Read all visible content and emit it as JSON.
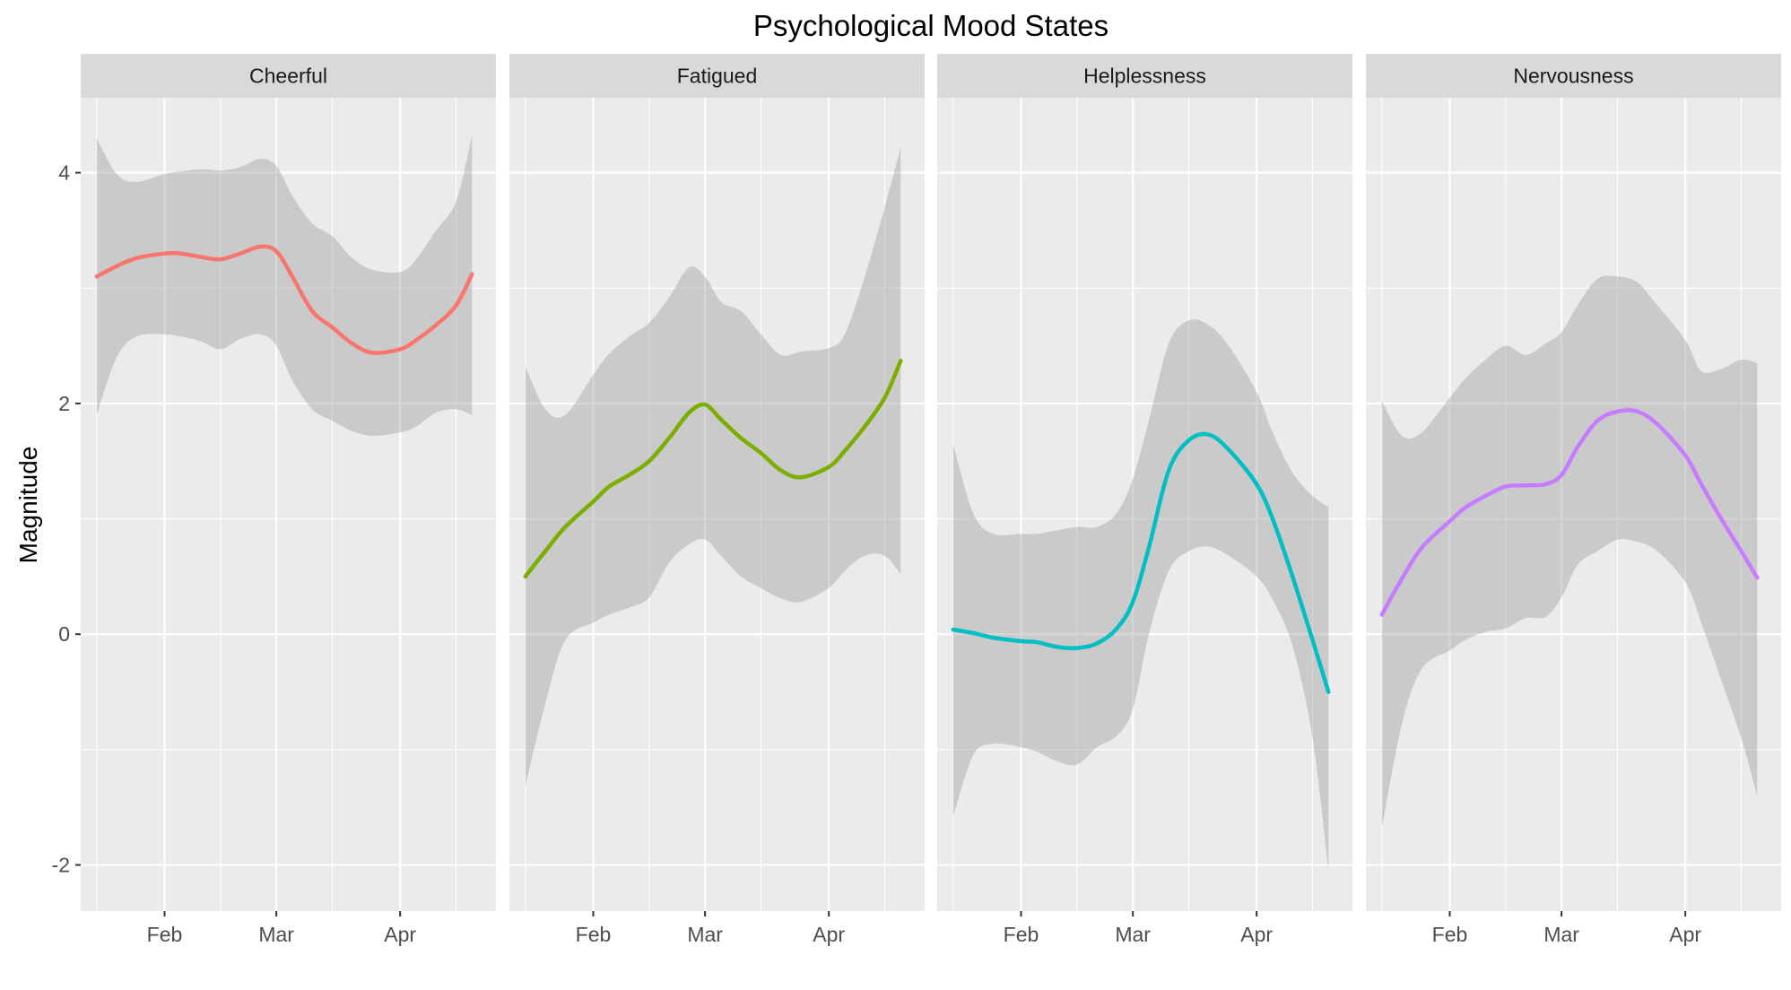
{
  "chart_data": {
    "type": "line",
    "title": "Psychological Mood States",
    "xlabel": "",
    "ylabel": "Magnitude",
    "ylim": [
      -2.4,
      4.65
    ],
    "y_ticks": [
      -2,
      0,
      2,
      4
    ],
    "y_tick_labels": [
      "-2",
      "0",
      "2",
      "4"
    ],
    "x_ticks": [
      "2023-02-01",
      "2023-03-01",
      "2023-04-01"
    ],
    "x_tick_labels": [
      "Feb",
      "Mar",
      "Apr"
    ],
    "x_minor_ticks": [
      "2023-01-15",
      "2023-02-15",
      "2023-03-15",
      "2023-04-15"
    ],
    "xlim": [
      "2023-01-11",
      "2023-04-25"
    ],
    "grid": true,
    "legend": "none",
    "band": "confidence interval (grey)",
    "panels": [
      {
        "name": "Cheerful",
        "color": "#F8766D",
        "x": [
          "2023-01-15",
          "2023-01-20",
          "2023-01-25",
          "2023-02-01",
          "2023-02-05",
          "2023-02-10",
          "2023-02-15",
          "2023-02-20",
          "2023-02-25",
          "2023-03-01",
          "2023-03-05",
          "2023-03-10",
          "2023-03-15",
          "2023-03-20",
          "2023-03-25",
          "2023-04-01",
          "2023-04-05",
          "2023-04-10",
          "2023-04-15",
          "2023-04-19"
        ],
        "y": [
          3.1,
          3.19,
          3.26,
          3.3,
          3.3,
          3.27,
          3.25,
          3.3,
          3.36,
          3.32,
          3.1,
          2.8,
          2.66,
          2.52,
          2.44,
          2.47,
          2.55,
          2.68,
          2.85,
          3.12
        ],
        "lower": [
          1.9,
          2.4,
          2.58,
          2.6,
          2.58,
          2.54,
          2.47,
          2.56,
          2.6,
          2.5,
          2.2,
          1.95,
          1.85,
          1.76,
          1.72,
          1.75,
          1.8,
          1.92,
          1.95,
          1.9
        ],
        "upper": [
          4.3,
          3.99,
          3.92,
          3.99,
          4.01,
          4.03,
          4.02,
          4.05,
          4.12,
          4.06,
          3.8,
          3.56,
          3.45,
          3.26,
          3.16,
          3.14,
          3.25,
          3.5,
          3.75,
          4.32
        ]
      },
      {
        "name": "Fatigued",
        "color": "#7CAE00",
        "x": [
          "2023-01-15",
          "2023-01-20",
          "2023-01-25",
          "2023-02-01",
          "2023-02-05",
          "2023-02-10",
          "2023-02-15",
          "2023-02-20",
          "2023-02-25",
          "2023-03-01",
          "2023-03-05",
          "2023-03-10",
          "2023-03-15",
          "2023-03-20",
          "2023-03-25",
          "2023-04-01",
          "2023-04-05",
          "2023-04-10",
          "2023-04-15",
          "2023-04-19"
        ],
        "y": [
          0.5,
          0.72,
          0.93,
          1.15,
          1.28,
          1.38,
          1.5,
          1.7,
          1.92,
          1.99,
          1.86,
          1.7,
          1.57,
          1.42,
          1.36,
          1.45,
          1.59,
          1.8,
          2.05,
          2.37
        ],
        "lower": [
          -1.32,
          -0.6,
          -0.05,
          0.1,
          0.17,
          0.23,
          0.32,
          0.62,
          0.78,
          0.82,
          0.68,
          0.5,
          0.4,
          0.31,
          0.28,
          0.4,
          0.55,
          0.68,
          0.68,
          0.52
        ],
        "upper": [
          2.32,
          1.95,
          1.9,
          2.25,
          2.43,
          2.58,
          2.7,
          2.92,
          3.18,
          3.1,
          2.88,
          2.8,
          2.6,
          2.42,
          2.45,
          2.48,
          2.6,
          3.1,
          3.7,
          4.22
        ]
      },
      {
        "name": "Helplessness",
        "color": "#00BFC4",
        "x": [
          "2023-01-15",
          "2023-01-20",
          "2023-01-25",
          "2023-02-01",
          "2023-02-05",
          "2023-02-10",
          "2023-02-15",
          "2023-02-20",
          "2023-02-25",
          "2023-03-01",
          "2023-03-05",
          "2023-03-10",
          "2023-03-15",
          "2023-03-20",
          "2023-03-25",
          "2023-04-01",
          "2023-04-05",
          "2023-04-10",
          "2023-04-15",
          "2023-04-19"
        ],
        "y": [
          0.04,
          0.01,
          -0.03,
          -0.06,
          -0.07,
          -0.11,
          -0.12,
          -0.08,
          0.05,
          0.28,
          0.75,
          1.42,
          1.68,
          1.73,
          1.6,
          1.3,
          1.0,
          0.5,
          -0.05,
          -0.5
        ],
        "lower": [
          -1.58,
          -1.05,
          -0.95,
          -0.98,
          -1.02,
          -1.1,
          -1.13,
          -0.98,
          -0.88,
          -0.65,
          0.0,
          0.55,
          0.72,
          0.76,
          0.68,
          0.5,
          0.3,
          -0.1,
          -0.9,
          -2.05
        ],
        "upper": [
          1.65,
          1.05,
          0.87,
          0.87,
          0.87,
          0.9,
          0.93,
          0.93,
          1.05,
          1.35,
          1.85,
          2.52,
          2.72,
          2.68,
          2.5,
          2.1,
          1.75,
          1.4,
          1.2,
          1.1
        ]
      },
      {
        "name": "Nervousness",
        "color": "#C77CFF",
        "x": [
          "2023-01-15",
          "2023-01-20",
          "2023-01-25",
          "2023-02-01",
          "2023-02-05",
          "2023-02-10",
          "2023-02-15",
          "2023-02-20",
          "2023-02-25",
          "2023-03-01",
          "2023-03-05",
          "2023-03-10",
          "2023-03-15",
          "2023-03-20",
          "2023-03-25",
          "2023-04-01",
          "2023-04-05",
          "2023-04-10",
          "2023-04-15",
          "2023-04-19"
        ],
        "y": [
          0.17,
          0.48,
          0.75,
          0.98,
          1.1,
          1.2,
          1.28,
          1.29,
          1.3,
          1.38,
          1.62,
          1.85,
          1.93,
          1.93,
          1.82,
          1.55,
          1.3,
          1.0,
          0.72,
          0.49
        ],
        "lower": [
          -1.68,
          -0.78,
          -0.3,
          -0.14,
          -0.05,
          0.02,
          0.05,
          0.14,
          0.15,
          0.32,
          0.6,
          0.72,
          0.82,
          0.8,
          0.72,
          0.45,
          0.1,
          -0.4,
          -0.9,
          -1.4
        ],
        "upper": [
          2.02,
          1.72,
          1.75,
          2.05,
          2.22,
          2.38,
          2.5,
          2.42,
          2.52,
          2.62,
          2.85,
          3.08,
          3.1,
          3.05,
          2.85,
          2.55,
          2.28,
          2.3,
          2.38,
          2.35
        ]
      }
    ]
  }
}
